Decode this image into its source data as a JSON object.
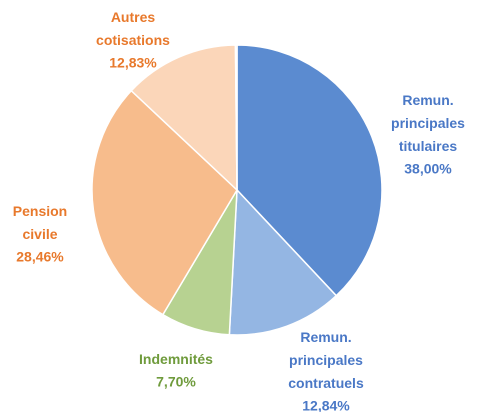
{
  "chart_data": {
    "type": "pie",
    "categories": [
      "Remun. principales titulaires",
      "Remun. principales contratuels",
      "Indemnités",
      "Pension civile",
      "Autres cotisations",
      null
    ],
    "values": [
      38.0,
      12.84,
      7.7,
      28.46,
      12.83,
      0.17
    ],
    "value_labels": [
      "38,00%",
      "12,84%",
      "7,70%",
      "28,46%",
      "12,83%",
      null
    ],
    "colors": [
      "#5b8bd0",
      "#94b6e3",
      "#b7d291",
      "#f7bc8c",
      "#fbd6b9",
      "#e07a2f"
    ],
    "label_colors": [
      "#4a78c6",
      "#4a78c6",
      "#6f9b3c",
      "#e8792c",
      "#e8792c",
      null
    ]
  }
}
